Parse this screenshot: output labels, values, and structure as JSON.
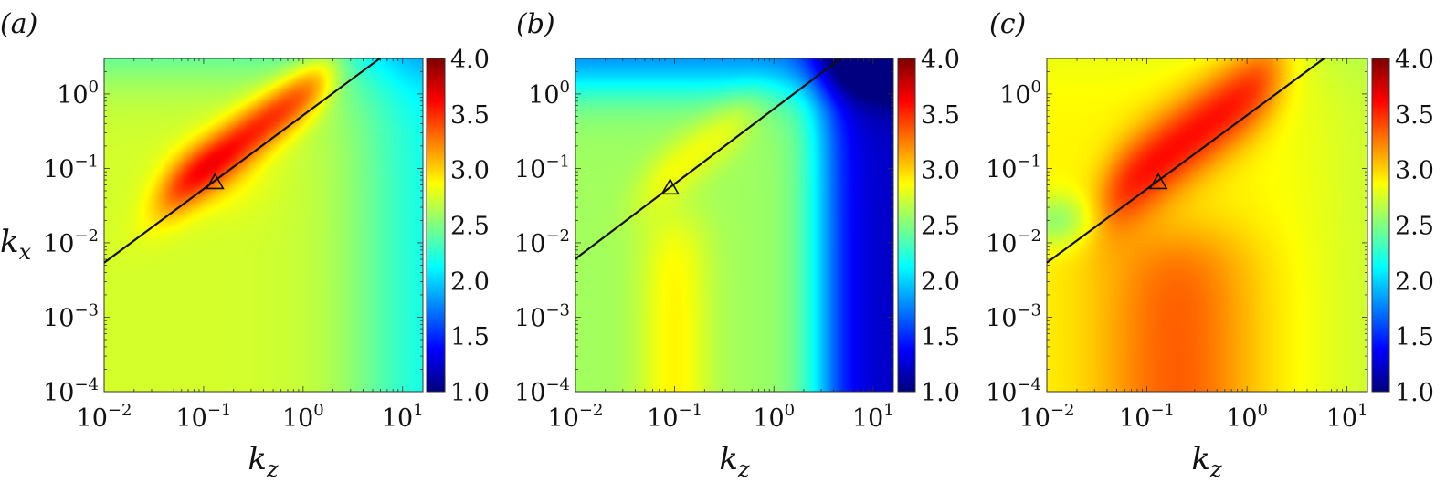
{
  "chart_data": [
    {
      "type": "heatmap",
      "panel_label": "(a)",
      "xlabel": "k",
      "xlabel_sub": "z",
      "ylabel": "k",
      "ylabel_sub": "x",
      "x_scale": "log",
      "y_scale": "log",
      "xlim": [
        0.01,
        16
      ],
      "ylim": [
        0.0001,
        3
      ],
      "x_ticks": [
        {
          "base": "10",
          "exp": "−2",
          "value": 0.01
        },
        {
          "base": "10",
          "exp": "−1",
          "value": 0.1
        },
        {
          "base": "10",
          "exp": "0",
          "value": 1
        },
        {
          "base": "10",
          "exp": "1",
          "value": 10
        }
      ],
      "y_ticks": [
        {
          "base": "10",
          "exp": "−4",
          "value": 0.0001
        },
        {
          "base": "10",
          "exp": "−3",
          "value": 0.001
        },
        {
          "base": "10",
          "exp": "−2",
          "value": 0.01
        },
        {
          "base": "10",
          "exp": "−1",
          "value": 0.1
        },
        {
          "base": "10",
          "exp": "0",
          "value": 1
        }
      ],
      "colorbar": {
        "range": [
          1.0,
          4.0
        ],
        "ticks": [
          "4.0",
          "3.5",
          "3.0",
          "2.5",
          "2.0",
          "1.5",
          "1.0"
        ],
        "colormap": "jet"
      },
      "line": {
        "x": [
          0.01,
          5.9
        ],
        "y": [
          0.0054,
          3.0
        ],
        "color": "#111111"
      },
      "marker": {
        "x": 0.13,
        "y": 0.065,
        "shape": "triangle"
      },
      "field": {
        "base": 2.75,
        "kz_falloff": {
          "center": 5,
          "width": 0.28,
          "amplitude": 0.65
        },
        "kx_falloff": {
          "center": 2.5,
          "width": 0.28,
          "amplitude": 0.55
        },
        "ridge": {
          "amplitude": 0.8,
          "width": 0.2,
          "offset": 0,
          "from": 0.04,
          "to": 1.8
        },
        "columns": [],
        "blobs": [
          {
            "x": 0.13,
            "y": 0.08,
            "amplitude": 0.15,
            "width": 0.35
          }
        ]
      }
    },
    {
      "type": "heatmap",
      "panel_label": "(b)",
      "xlabel": "k",
      "xlabel_sub": "z",
      "ylabel": "",
      "ylabel_sub": "",
      "x_scale": "log",
      "y_scale": "log",
      "xlim": [
        0.01,
        16
      ],
      "ylim": [
        0.0001,
        3
      ],
      "x_ticks": [
        {
          "base": "10",
          "exp": "−2",
          "value": 0.01
        },
        {
          "base": "10",
          "exp": "−1",
          "value": 0.1
        },
        {
          "base": "10",
          "exp": "0",
          "value": 1
        },
        {
          "base": "10",
          "exp": "1",
          "value": 10
        }
      ],
      "y_ticks": [
        {
          "base": "10",
          "exp": "−4",
          "value": 0.0001
        },
        {
          "base": "10",
          "exp": "−3",
          "value": 0.001
        },
        {
          "base": "10",
          "exp": "−2",
          "value": 0.01
        },
        {
          "base": "10",
          "exp": "−1",
          "value": 0.1
        },
        {
          "base": "10",
          "exp": "0",
          "value": 1
        }
      ],
      "colorbar": {
        "range": [
          1.0,
          4.0
        ],
        "ticks": [
          "4.0",
          "3.5",
          "3.0",
          "2.5",
          "2.0",
          "1.5",
          "1.0"
        ],
        "colormap": "jet"
      },
      "line": {
        "x": [
          0.01,
          4.7
        ],
        "y": [
          0.0061,
          3.0
        ],
        "color": "#111111"
      },
      "marker": {
        "x": 0.09,
        "y": 0.055,
        "shape": "triangle"
      },
      "field": {
        "base": 2.6,
        "kz_falloff": {
          "center": 3.2,
          "width": 0.15,
          "amplitude": 1.4
        },
        "kx_falloff": {
          "center": 1.3,
          "width": 0.2,
          "amplitude": 0.9
        },
        "ridge": {
          "amplitude": 0.25,
          "width": 0.2,
          "offset": 0,
          "from": 0.05,
          "to": 0.6
        },
        "columns": [
          {
            "x": 0.1,
            "width": 0.25,
            "amplitude": 0.3,
            "y_max": 0.02
          }
        ],
        "blobs": []
      }
    },
    {
      "type": "heatmap",
      "panel_label": "(c)",
      "xlabel": "k",
      "xlabel_sub": "z",
      "ylabel": "",
      "ylabel_sub": "",
      "x_scale": "log",
      "y_scale": "log",
      "xlim": [
        0.01,
        16
      ],
      "ylim": [
        0.0001,
        3
      ],
      "x_ticks": [
        {
          "base": "10",
          "exp": "−2",
          "value": 0.01
        },
        {
          "base": "10",
          "exp": "−1",
          "value": 0.1
        },
        {
          "base": "10",
          "exp": "0",
          "value": 1
        },
        {
          "base": "10",
          "exp": "1",
          "value": 10
        }
      ],
      "y_ticks": [
        {
          "base": "10",
          "exp": "−4",
          "value": 0.0001
        },
        {
          "base": "10",
          "exp": "−3",
          "value": 0.001
        },
        {
          "base": "10",
          "exp": "−2",
          "value": 0.01
        },
        {
          "base": "10",
          "exp": "−1",
          "value": 0.1
        },
        {
          "base": "10",
          "exp": "0",
          "value": 1
        }
      ],
      "colorbar": {
        "range": [
          1.0,
          4.0
        ],
        "ticks": [
          "4.0",
          "3.5",
          "3.0",
          "2.5",
          "2.0",
          "1.5",
          "1.0"
        ],
        "colormap": "jet"
      },
      "line": {
        "x": [
          0.01,
          5.9
        ],
        "y": [
          0.0054,
          3.0
        ],
        "color": "#111111"
      },
      "marker": {
        "x": 0.13,
        "y": 0.065,
        "shape": "triangle"
      },
      "field": {
        "base": 2.9,
        "kz_falloff": {
          "center": 6,
          "width": 0.3,
          "amplitude": 0.2
        },
        "kx_falloff": {
          "center": 3,
          "width": 0.3,
          "amplitude": 0.15
        },
        "ridge": {
          "amplitude": 0.7,
          "width": 0.3,
          "offset": 0,
          "from": 0.04,
          "to": 2.0
        },
        "columns": [
          {
            "x": 0.2,
            "width": 0.55,
            "amplitude": 0.45,
            "y_max": 0.012
          }
        ],
        "blobs": [
          {
            "x": 0.013,
            "y": 0.02,
            "amplitude": -0.35,
            "width": 0.25
          }
        ]
      }
    }
  ]
}
